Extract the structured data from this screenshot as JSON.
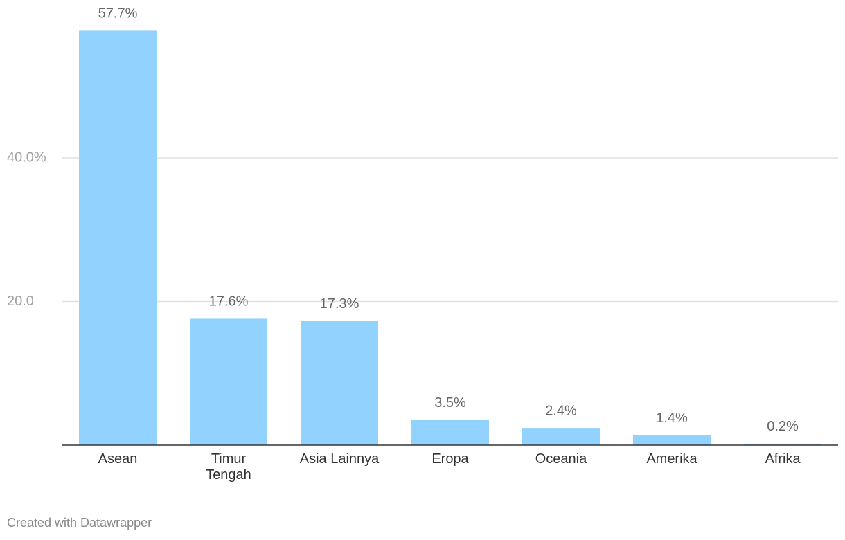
{
  "chart_data": {
    "type": "bar",
    "categories": [
      "Asean",
      "Timur\nTengah",
      "Asia Lainnya",
      "Eropa",
      "Oceania",
      "Amerika",
      "Afrika"
    ],
    "values": [
      57.7,
      17.6,
      17.3,
      3.5,
      2.4,
      1.4,
      0.2
    ],
    "value_labels": [
      "57.7%",
      "17.6%",
      "17.3%",
      "3.5%",
      "2.4%",
      "1.4%",
      "0.2%"
    ],
    "color": "#91d3fe",
    "ylim": [
      0,
      60
    ],
    "yticks": [
      {
        "value": 20,
        "label": "20.0"
      },
      {
        "value": 40,
        "label": "40.0%"
      }
    ],
    "grid": true
  },
  "footer": "Created with Datawrapper"
}
